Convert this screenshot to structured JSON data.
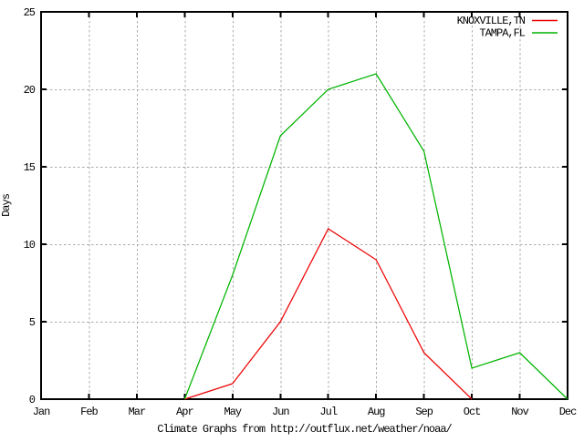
{
  "chart_data": {
    "type": "line",
    "title": "Climate Graphs from http://outflux.net/weather/noaa/",
    "ylabel": "Days",
    "ylim": [
      0,
      25
    ],
    "ytick_labels": [
      "0",
      "5",
      "10",
      "15",
      "20",
      "25"
    ],
    "categories": [
      "Jan",
      "Feb",
      "Mar",
      "Apr",
      "May",
      "Jun",
      "Jul",
      "Aug",
      "Sep",
      "Oct",
      "Nov",
      "Dec"
    ],
    "grid": "dashed",
    "legend_position": "top-right",
    "series": [
      {
        "name": "KNOXVILLE,TN",
        "color": "#ee0000",
        "values": [
          null,
          null,
          null,
          0,
          1,
          5,
          11,
          9,
          3,
          0,
          null,
          null
        ]
      },
      {
        "name": "TAMPA,FL",
        "color": "#00b400",
        "values": [
          null,
          null,
          null,
          0,
          8,
          17,
          20,
          21,
          16,
          2,
          3,
          0
        ]
      }
    ]
  },
  "colors": {
    "background": "#ffffff",
    "axis": "#000000",
    "grid": "#ababab",
    "text": "#000000"
  }
}
